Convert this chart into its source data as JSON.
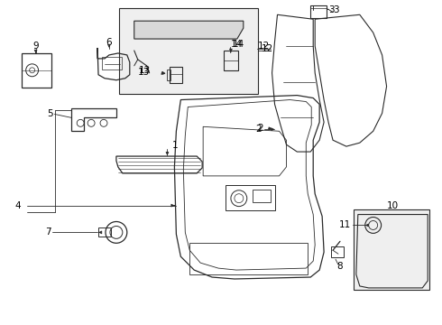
{
  "bg_color": "#ffffff",
  "line_color": "#2a2a2a",
  "label_color": "#000000",
  "box_fill": "#eaeaea",
  "label_font_size": 7.5,
  "figsize": [
    4.9,
    3.6
  ],
  "dpi": 100
}
